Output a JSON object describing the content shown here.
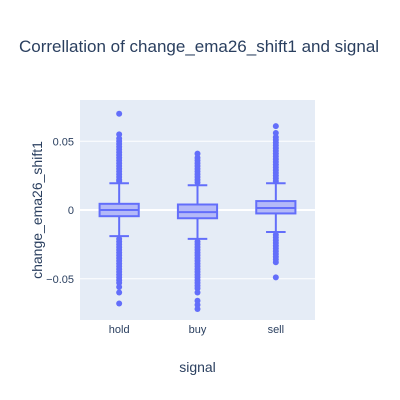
{
  "chart_data": {
    "type": "box",
    "title": "Correllation of change_ema26_shift1 and signal",
    "xlabel": "signal",
    "ylabel": "change_ema26_shift1",
    "ylim": [
      -0.08,
      0.08
    ],
    "yticks": [
      {
        "value": 0.05,
        "label": "0.05"
      },
      {
        "value": 0,
        "label": "0"
      },
      {
        "value": -0.05,
        "label": "−0.05"
      }
    ],
    "grid": true,
    "colors": {
      "plot_bg": "#e5ecf6",
      "grid": "#ffffff",
      "box_fill": "#b4b9f8",
      "box_line": "#636efa",
      "points": "#636efa"
    },
    "categories": [
      "hold",
      "buy",
      "sell"
    ],
    "boxes": [
      {
        "name": "hold",
        "q1": -0.0045,
        "median": 0.0,
        "q3": 0.0045,
        "lowerfence": -0.019,
        "upperfence": 0.0195,
        "outliers": [
          0.07,
          0.055,
          0.052,
          0.05,
          0.048,
          0.046,
          0.044,
          0.042,
          0.04,
          0.038,
          0.036,
          0.034,
          0.032,
          0.03,
          0.028,
          0.026,
          0.024,
          0.022,
          0.021,
          -0.021,
          -0.023,
          -0.025,
          -0.027,
          -0.029,
          -0.031,
          -0.033,
          -0.035,
          -0.037,
          -0.039,
          -0.041,
          -0.043,
          -0.045,
          -0.047,
          -0.049,
          -0.051,
          -0.053,
          -0.056,
          -0.06,
          -0.068
        ]
      },
      {
        "name": "buy",
        "q1": -0.006,
        "median": -0.0015,
        "q3": 0.004,
        "lowerfence": -0.021,
        "upperfence": 0.018,
        "outliers": [
          0.041,
          0.038,
          0.036,
          0.034,
          0.032,
          0.03,
          0.028,
          0.026,
          0.024,
          0.022,
          0.02,
          -0.023,
          -0.025,
          -0.027,
          -0.029,
          -0.031,
          -0.033,
          -0.035,
          -0.037,
          -0.039,
          -0.041,
          -0.043,
          -0.045,
          -0.047,
          -0.049,
          -0.051,
          -0.053,
          -0.055,
          -0.057,
          -0.06,
          -0.066,
          -0.069,
          -0.072
        ]
      },
      {
        "name": "sell",
        "q1": -0.0025,
        "median": 0.0015,
        "q3": 0.0065,
        "lowerfence": -0.016,
        "upperfence": 0.0195,
        "outliers": [
          0.061,
          0.056,
          0.053,
          0.051,
          0.049,
          0.047,
          0.045,
          0.043,
          0.041,
          0.039,
          0.037,
          0.035,
          0.033,
          0.031,
          0.029,
          0.027,
          0.025,
          0.023,
          0.021,
          -0.018,
          -0.02,
          -0.022,
          -0.024,
          -0.026,
          -0.028,
          -0.03,
          -0.032,
          -0.034,
          -0.036,
          -0.038,
          -0.049
        ]
      }
    ]
  }
}
